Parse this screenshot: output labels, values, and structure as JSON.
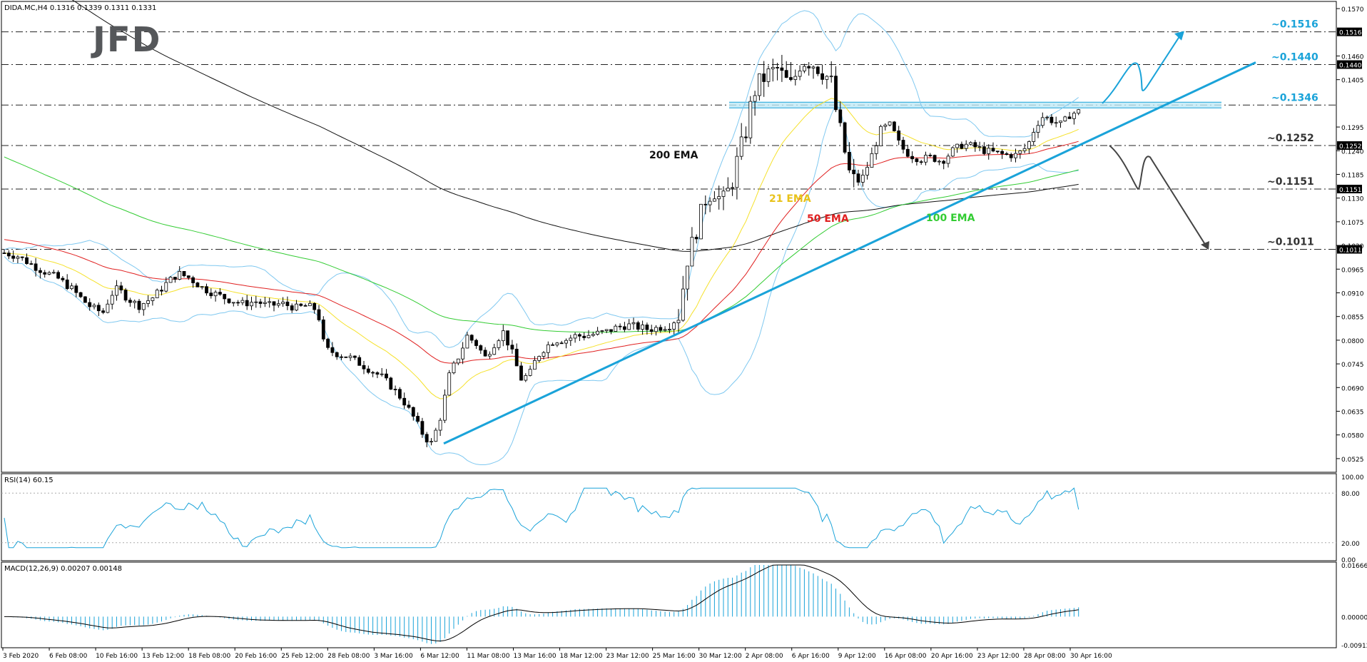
{
  "chart_data": {
    "type": "candlestick",
    "symbol_header": "DIDA.MC,H4  0.1316 0.1339 0.1311 0.1331",
    "logo": "JFD",
    "price_axis": {
      "range": [
        0.0495,
        0.1585
      ],
      "ticks": [
        "0.1570",
        "0.1460",
        "0.1405",
        "0.1295",
        "0.1240",
        "0.1185",
        "0.1130",
        "0.1075",
        "0.1020",
        "0.0965",
        "0.0910",
        "0.0855",
        "0.0800",
        "0.0745",
        "0.0690",
        "0.0635",
        "0.0580",
        "0.0525"
      ]
    },
    "x_tick_labels": [
      "3 Feb 2020",
      "6 Feb 08:00",
      "10 Feb 16:00",
      "13 Feb 12:00",
      "18 Feb 08:00",
      "20 Feb 16:00",
      "25 Feb 12:00",
      "28 Feb 08:00",
      "3 Mar 16:00",
      "6 Mar 12:00",
      "11 Mar 08:00",
      "13 Mar 16:00",
      "18 Mar 12:00",
      "23 Mar 12:00",
      "25 Mar 16:00",
      "30 Mar 12:00",
      "2 Apr 08:00",
      "6 Apr 16:00",
      "9 Apr 12:00",
      "16 Apr 08:00",
      "20 Apr 16:00",
      "23 Apr 12:00",
      "28 Apr 08:00",
      "30 Apr 16:00"
    ],
    "levels": [
      {
        "label": "~0.1516",
        "value": 0.1516,
        "color": "#1aa3d9",
        "box": "0.1516"
      },
      {
        "label": "~0.1440",
        "value": 0.144,
        "color": "#1aa3d9",
        "box": "0.1440"
      },
      {
        "label": "~0.1346",
        "value": 0.1346,
        "color": "#1aa3d9",
        "box": ""
      },
      {
        "label": "~0.1252",
        "value": 0.1252,
        "color": "#333333",
        "box": "0.1252"
      },
      {
        "label": "~0.1151",
        "value": 0.1151,
        "color": "#333333",
        "box": "0.1151"
      },
      {
        "label": "~0.1011",
        "value": 0.1011,
        "color": "#333333",
        "box": "0.1011"
      }
    ],
    "ema_labels": [
      {
        "text": "200 EMA",
        "color": "#111111"
      },
      {
        "text": "21 EMA",
        "color": "#e8c21a"
      },
      {
        "text": "50 EMA",
        "color": "#e02020"
      },
      {
        "text": "100 EMA",
        "color": "#33cc33"
      }
    ],
    "rsi": {
      "header": "RSI(14) 60.15",
      "ticks": [
        "100.00",
        "80.00",
        "20.00",
        "0.00"
      ],
      "last": 60.15
    },
    "macd": {
      "header": "MACD(12,26,9) 0.00207 0.00148",
      "ticks": [
        "0.01666",
        "0.00000",
        "-0.00912"
      ],
      "main": 0.00207,
      "signal": 0.00148
    },
    "colors": {
      "bull": "#ffffff",
      "bear": "#000000",
      "bands": "#7fc8f0",
      "trend": "#1aa3d9",
      "ema200": "#111111",
      "ema21": "#f5e12a",
      "ema50": "#e02020",
      "ema100": "#33cc33"
    }
  }
}
